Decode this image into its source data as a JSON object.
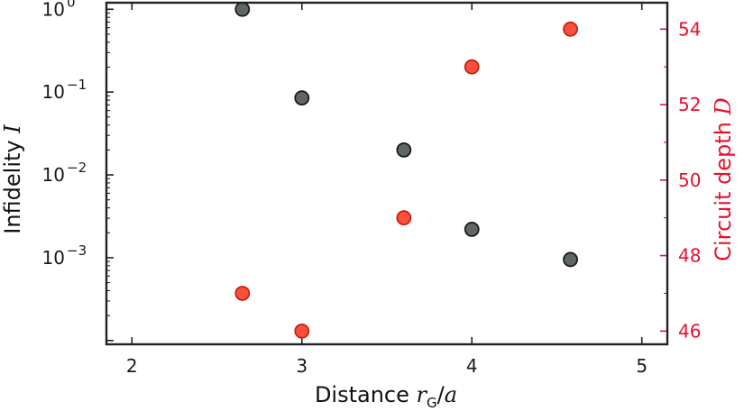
{
  "chart_data": {
    "type": "scatter",
    "title": "",
    "xlabel": "Distance rG/a",
    "xlabel_parts": {
      "prefix": "Distance ",
      "var": "r",
      "sub": "G",
      "slash": "/",
      "denom": "a"
    },
    "ylabel_left": "Infidelity I",
    "ylabel_left_parts": {
      "prefix": "Infidelity ",
      "var": "I"
    },
    "ylabel_right": "Circuit depth D",
    "ylabel_right_parts": {
      "prefix": "Circuit depth ",
      "var": "D"
    },
    "xlim": [
      1.85,
      5.15
    ],
    "x_ticks": [
      2,
      3,
      4,
      5
    ],
    "y_left_scale": "log",
    "y_left_lim": [
      9e-05,
      1.2
    ],
    "y_left_ticks": [
      {
        "base": "10",
        "exp": "0",
        "value": 1
      },
      {
        "base": "10",
        "exp": "−1",
        "value": 0.1
      },
      {
        "base": "10",
        "exp": "−2",
        "value": 0.01
      },
      {
        "base": "10",
        "exp": "−3",
        "value": 0.001
      }
    ],
    "y_right_lim": [
      45.65,
      54.7
    ],
    "y_right_ticks": [
      46,
      48,
      50,
      52,
      54
    ],
    "grid": false,
    "series": [
      {
        "axis": "left",
        "color": "#5f6766",
        "x": [
          2.65,
          3.0,
          3.6,
          4.0,
          4.58
        ],
        "y": [
          1.0,
          0.085,
          0.02,
          0.0022,
          0.00095
        ]
      },
      {
        "axis": "right",
        "color": "#f8503d",
        "x": [
          2.65,
          3.0,
          3.6,
          4.0,
          4.58
        ],
        "y": [
          47,
          46,
          49,
          53,
          54
        ]
      }
    ],
    "colors": {
      "left_axis": "#111111",
      "right_axis": "#e8112d"
    }
  }
}
